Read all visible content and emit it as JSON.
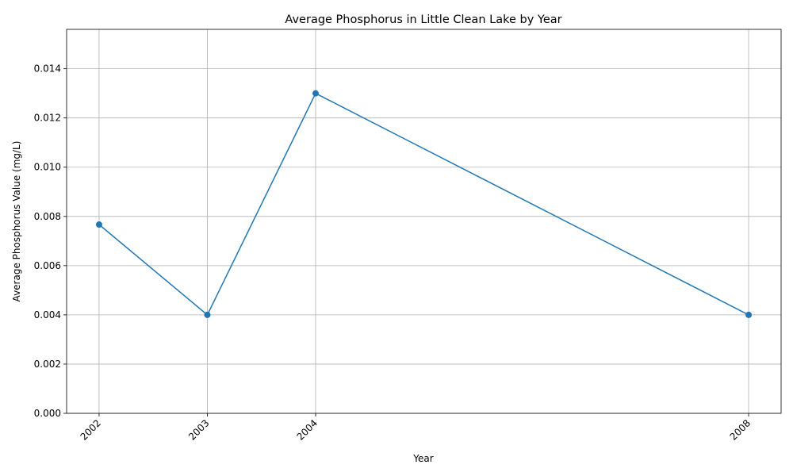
{
  "chart_data": {
    "type": "line",
    "title": "Average Phosphorus in Little Clean Lake by Year",
    "xlabel": "Year",
    "ylabel": "Average Phosphorus Value (mg/L)",
    "x": [
      2002,
      2003,
      2004,
      2008
    ],
    "x_tick_labels": [
      "2002",
      "2003",
      "2004",
      "2008"
    ],
    "series": [
      {
        "values": [
          0.00767,
          0.004,
          0.013,
          0.004
        ],
        "color": "#1f77b4",
        "marker": "circle"
      }
    ],
    "y_ticks": [
      0.0,
      0.002,
      0.004,
      0.006,
      0.008,
      0.01,
      0.012,
      0.014
    ],
    "y_tick_labels": [
      "0.000",
      "0.002",
      "0.004",
      "0.006",
      "0.008",
      "0.010",
      "0.012",
      "0.014"
    ],
    "xlim": [
      2001.7,
      2008.3
    ],
    "ylim": [
      0,
      0.0156
    ],
    "grid": true
  }
}
